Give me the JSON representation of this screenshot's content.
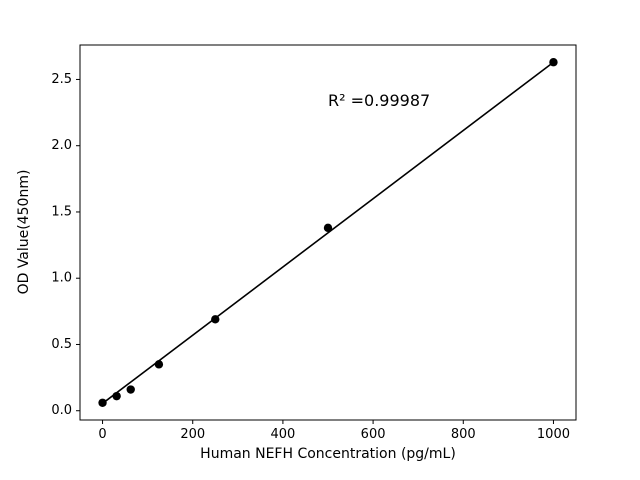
{
  "chart_data": {
    "type": "scatter",
    "title": "",
    "xlabel": "Human NEFH Concentration (pg/mL)",
    "ylabel": "OD Value(450nm)",
    "annotation": "R² =0.99987",
    "x": [
      0,
      31.25,
      62.5,
      125,
      250,
      500,
      1000
    ],
    "y": [
      0.06,
      0.11,
      0.16,
      0.35,
      0.69,
      1.38,
      2.63
    ],
    "fit_line": {
      "x": [
        0,
        1000
      ],
      "y": [
        0.055,
        2.63
      ]
    },
    "xlim": [
      -50,
      1050
    ],
    "ylim": [
      -0.07,
      2.76
    ],
    "xticks": [
      0,
      200,
      400,
      600,
      800,
      1000
    ],
    "xtick_labels": [
      "0",
      "200",
      "400",
      "600",
      "800",
      "1000"
    ],
    "yticks": [
      0.0,
      0.5,
      1.0,
      1.5,
      2.0,
      2.5
    ],
    "ytick_labels": [
      "0.0",
      "0.5",
      "1.0",
      "1.5",
      "2.0",
      "2.5"
    ],
    "marker_color": "#000000",
    "line_color": "#000000",
    "background_color": "#ffffff",
    "legend": null,
    "grid": false
  }
}
